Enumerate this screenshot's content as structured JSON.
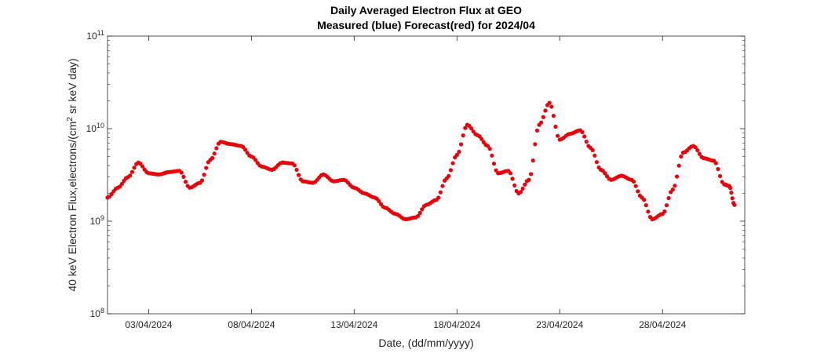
{
  "chart_data": {
    "type": "scatter",
    "title_line1": "Daily Averaged Electron Flux at GEO",
    "title_line2": "Measured (blue) Forecast(red) for 2024/04",
    "xlabel": "Date, (dd/mm/yyyy)",
    "ylabel_pre": "40 keV Electron Flux,electrons/(cm",
    "ylabel_sup": "2",
    "ylabel_post": " sr keV day)",
    "y_scale": "log",
    "ylim": [
      100000000,
      100000000000
    ],
    "xlim": [
      "2024-04-01T00:00",
      "2024-05-02T00:00"
    ],
    "y_ticks": [
      {
        "value": 100000000,
        "base": "10",
        "exp": "8"
      },
      {
        "value": 1000000000,
        "base": "10",
        "exp": "9"
      },
      {
        "value": 10000000000,
        "base": "10",
        "exp": "10"
      },
      {
        "value": 100000000000,
        "base": "10",
        "exp": "11"
      }
    ],
    "x_ticks": [
      {
        "date": "2024-04-03",
        "label": "03/04/2024"
      },
      {
        "date": "2024-04-08",
        "label": "08/04/2024"
      },
      {
        "date": "2024-04-13",
        "label": "13/04/2024"
      },
      {
        "date": "2024-04-18",
        "label": "18/04/2024"
      },
      {
        "date": "2024-04-23",
        "label": "23/04/2024"
      },
      {
        "date": "2024-04-28",
        "label": "28/04/2024"
      }
    ],
    "grid": false,
    "marker_color": "#e8000b",
    "series": [
      {
        "marker": "filled-circle",
        "x": [
          "2024-04-01T00:00",
          "2024-04-01T12:00",
          "2024-04-02T00:00",
          "2024-04-02T12:00",
          "2024-04-03T00:00",
          "2024-04-03T12:00",
          "2024-04-04T00:00",
          "2024-04-04T12:00",
          "2024-04-05T00:00",
          "2024-04-05T12:00",
          "2024-04-06T00:00",
          "2024-04-06T12:00",
          "2024-04-07T00:00",
          "2024-04-07T12:00",
          "2024-04-08T00:00",
          "2024-04-08T12:00",
          "2024-04-09T00:00",
          "2024-04-09T12:00",
          "2024-04-10T00:00",
          "2024-04-10T12:00",
          "2024-04-11T00:00",
          "2024-04-11T12:00",
          "2024-04-12T00:00",
          "2024-04-12T12:00",
          "2024-04-13T00:00",
          "2024-04-13T12:00",
          "2024-04-14T00:00",
          "2024-04-14T12:00",
          "2024-04-15T00:00",
          "2024-04-15T12:00",
          "2024-04-16T00:00",
          "2024-04-16T12:00",
          "2024-04-17T00:00",
          "2024-04-17T12:00",
          "2024-04-18T00:00",
          "2024-04-18T12:00",
          "2024-04-19T00:00",
          "2024-04-19T12:00",
          "2024-04-20T00:00",
          "2024-04-20T12:00",
          "2024-04-21T00:00",
          "2024-04-21T12:00",
          "2024-04-22T00:00",
          "2024-04-22T12:00",
          "2024-04-23T00:00",
          "2024-04-23T12:00",
          "2024-04-24T00:00",
          "2024-04-24T12:00",
          "2024-04-25T00:00",
          "2024-04-25T12:00",
          "2024-04-26T00:00",
          "2024-04-26T12:00",
          "2024-04-27T00:00",
          "2024-04-27T12:00",
          "2024-04-28T00:00",
          "2024-04-28T12:00",
          "2024-04-29T00:00",
          "2024-04-29T12:00",
          "2024-04-30T00:00",
          "2024-04-30T12:00",
          "2024-05-01T00:00",
          "2024-05-01T06:00",
          "2024-05-01T12:00"
        ],
        "y": [
          1800000000,
          2300000000,
          3000000000,
          4300000000,
          3300000000,
          3200000000,
          3400000000,
          3500000000,
          2300000000,
          2600000000,
          4600000000,
          7200000000,
          6800000000,
          6500000000,
          5000000000,
          3900000000,
          3600000000,
          4300000000,
          4200000000,
          2700000000,
          2600000000,
          3200000000,
          2700000000,
          2800000000,
          2300000000,
          2000000000,
          1800000000,
          1400000000,
          1200000000,
          1050000000,
          1100000000,
          1500000000,
          1700000000,
          2900000000,
          5200000000,
          11000000000,
          8500000000,
          6500000000,
          3300000000,
          3500000000,
          2000000000,
          2800000000,
          11000000000,
          19000000000,
          7600000000,
          8800000000,
          9600000000,
          6200000000,
          3600000000,
          2800000000,
          3100000000,
          2800000000,
          1800000000,
          1050000000,
          1200000000,
          2200000000,
          5500000000,
          6500000000,
          4800000000,
          4500000000,
          2500000000,
          2400000000,
          1500000000
        ]
      }
    ]
  }
}
